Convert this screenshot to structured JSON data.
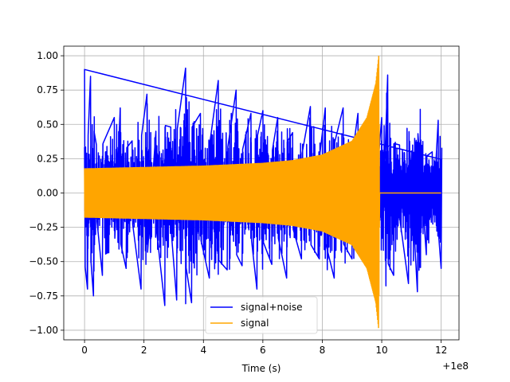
{
  "chart_data": {
    "type": "line",
    "title": "",
    "xlabel": "Time (s)",
    "ylabel": "",
    "x_offset_label": "+1e8",
    "xlim": [
      -0.7,
      12.6
    ],
    "ylim": [
      -1.07,
      1.07
    ],
    "grid": true,
    "legend_position": "lower-center",
    "x_ticks": [
      0,
      2,
      4,
      6,
      8,
      10,
      12
    ],
    "x_tick_labels": [
      "0",
      "2",
      "4",
      "6",
      "8",
      "10",
      "12"
    ],
    "y_ticks": [
      -1.0,
      -0.75,
      -0.5,
      -0.25,
      0.0,
      0.25,
      0.5,
      0.75,
      1.0
    ],
    "y_tick_labels": [
      "−1.00",
      "−0.75",
      "−0.50",
      "−0.25",
      "0.00",
      "0.25",
      "0.50",
      "0.75",
      "1.00"
    ],
    "series": [
      {
        "name": "signal+noise",
        "color": "#0000ff",
        "x_range": [
          0,
          12
        ],
        "description_points": [
          [
            0.0,
            0.9
          ],
          [
            0.1,
            -0.7
          ],
          [
            0.2,
            0.85
          ],
          [
            0.3,
            -0.75
          ],
          [
            0.4,
            0.35
          ],
          [
            0.6,
            -0.6
          ],
          [
            1.0,
            0.55
          ],
          [
            1.2,
            0.62
          ],
          [
            1.4,
            -0.55
          ],
          [
            1.6,
            0.38
          ],
          [
            1.9,
            -0.7
          ],
          [
            2.1,
            0.72
          ],
          [
            2.4,
            0.45
          ],
          [
            2.7,
            -0.82
          ],
          [
            2.9,
            0.48
          ],
          [
            3.1,
            -0.78
          ],
          [
            3.4,
            0.91
          ],
          [
            3.6,
            -0.8
          ],
          [
            3.9,
            0.58
          ],
          [
            4.2,
            -0.62
          ],
          [
            4.5,
            0.82
          ],
          [
            4.8,
            -0.56
          ],
          [
            5.1,
            0.75
          ],
          [
            5.3,
            -0.53
          ],
          [
            5.6,
            0.58
          ],
          [
            5.8,
            -0.7
          ],
          [
            6.0,
            0.6
          ],
          [
            6.3,
            -0.52
          ],
          [
            6.5,
            0.55
          ],
          [
            6.8,
            -0.62
          ],
          [
            7.0,
            0.44
          ],
          [
            7.3,
            -0.48
          ],
          [
            7.6,
            0.63
          ],
          [
            7.9,
            -0.48
          ],
          [
            8.1,
            0.62
          ],
          [
            8.4,
            -0.62
          ],
          [
            8.7,
            0.62
          ],
          [
            9.0,
            -0.48
          ],
          [
            9.2,
            0.58
          ],
          [
            9.5,
            -0.45
          ],
          [
            9.7,
            0.36
          ],
          [
            10.0,
            0.55
          ],
          [
            10.2,
            0.86
          ],
          [
            10.4,
            -0.6
          ],
          [
            10.6,
            0.35
          ],
          [
            10.9,
            -0.66
          ],
          [
            11.2,
            -0.72
          ],
          [
            11.5,
            -0.45
          ],
          [
            11.7,
            0.3
          ],
          [
            11.9,
            0.53
          ],
          [
            12.0,
            -0.55
          ]
        ]
      },
      {
        "name": "signal",
        "color": "#ffa500",
        "x_range": [
          0,
          12
        ],
        "envelope": [
          [
            0.0,
            0.18
          ],
          [
            2.0,
            0.19
          ],
          [
            4.0,
            0.2
          ],
          [
            6.0,
            0.22
          ],
          [
            7.0,
            0.24
          ],
          [
            8.0,
            0.28
          ],
          [
            9.0,
            0.38
          ],
          [
            9.5,
            0.55
          ],
          [
            9.8,
            0.8
          ],
          [
            9.9,
            1.0
          ],
          [
            9.93,
            0.0
          ],
          [
            12.0,
            0.0
          ]
        ]
      }
    ]
  }
}
